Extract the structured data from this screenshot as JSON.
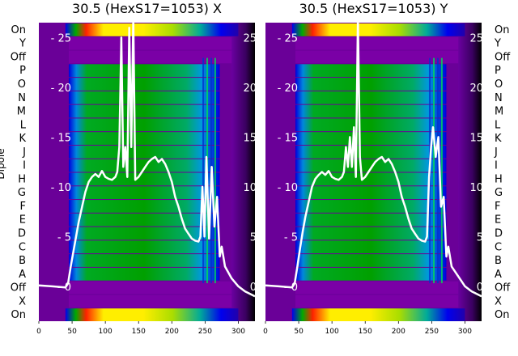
{
  "chart_data": [
    {
      "type": "heatmap",
      "title": "30.5 (HexS17=1053) X",
      "ylabel": "Dipole",
      "rows": [
        "On",
        "Y",
        "Off",
        "P",
        "O",
        "N",
        "M",
        "L",
        "K",
        "J",
        "I",
        "H",
        "G",
        "F",
        "E",
        "D",
        "C",
        "B",
        "A",
        "Off",
        "X",
        "On"
      ],
      "x_ticks": [
        0,
        50,
        100,
        150,
        200,
        250,
        300
      ],
      "xlim": [
        0,
        325
      ],
      "overlay_ticks": [
        0,
        5,
        10,
        15,
        20,
        25
      ],
      "overlay_ylim": [
        -3.5,
        26.5
      ],
      "overlay_line": {
        "x": [
          0,
          20,
          40,
          44,
          48,
          52,
          56,
          60,
          65,
          70,
          75,
          80,
          85,
          90,
          95,
          100,
          105,
          110,
          115,
          118,
          121,
          124,
          127,
          130,
          133,
          136,
          139,
          142,
          145,
          150,
          155,
          160,
          165,
          170,
          175,
          180,
          185,
          190,
          195,
          200,
          205,
          210,
          215,
          220,
          225,
          230,
          235,
          240,
          243,
          246,
          249,
          252,
          256,
          260,
          264,
          268,
          272,
          275,
          280,
          290,
          300,
          310,
          325
        ],
        "y": [
          0.1,
          0,
          -0.1,
          0.3,
          2,
          3.5,
          5,
          6.5,
          8,
          9.5,
          10.5,
          11,
          11.3,
          11,
          11.6,
          11,
          10.8,
          10.7,
          11,
          11.5,
          14,
          25,
          12,
          14,
          11,
          26,
          14,
          27,
          10.7,
          11,
          11.5,
          12,
          12.5,
          12.8,
          13,
          12.5,
          12.8,
          12.3,
          11.5,
          10.5,
          9,
          8,
          6.8,
          5.8,
          5.3,
          4.8,
          4.6,
          4.5,
          5,
          10,
          5,
          13,
          4.8,
          12,
          6,
          9,
          3,
          4,
          2,
          0.8,
          0,
          -0.5,
          -1
        ]
      },
      "colorscale": [
        "#ffffff",
        "#ff2200",
        "#ffee00",
        "#00bb00",
        "#0000ee",
        "#7700aa",
        "#000000"
      ]
    },
    {
      "type": "heatmap",
      "title": "30.5 (HexS17=1053) Y",
      "rows": [
        "On",
        "Y",
        "Off",
        "P",
        "O",
        "N",
        "M",
        "L",
        "K",
        "J",
        "I",
        "H",
        "G",
        "F",
        "E",
        "D",
        "C",
        "B",
        "A",
        "Off",
        "X",
        "On"
      ],
      "x_ticks": [
        0,
        50,
        100,
        150,
        200,
        250,
        300
      ],
      "xlim": [
        0,
        325
      ],
      "overlay_ticks": [
        0,
        5,
        10,
        15,
        20,
        25
      ],
      "overlay_ylim": [
        -3.5,
        26.5
      ],
      "overlay_line": {
        "x": [
          0,
          20,
          40,
          44,
          48,
          52,
          56,
          60,
          65,
          70,
          75,
          80,
          85,
          90,
          95,
          100,
          105,
          110,
          115,
          118,
          121,
          124,
          127,
          130,
          133,
          136,
          139,
          142,
          145,
          150,
          155,
          160,
          165,
          170,
          175,
          180,
          185,
          190,
          195,
          200,
          205,
          210,
          215,
          220,
          225,
          230,
          235,
          240,
          243,
          246,
          249,
          252,
          256,
          260,
          264,
          268,
          272,
          275,
          280,
          290,
          300,
          310,
          325
        ],
        "y": [
          0.1,
          0,
          -0.1,
          0.3,
          2,
          3.8,
          5.5,
          7,
          8.5,
          10,
          10.8,
          11.2,
          11.5,
          11.2,
          11.6,
          11,
          10.8,
          10.7,
          11,
          11.5,
          14,
          12,
          15,
          12,
          16,
          11,
          27,
          13,
          10.7,
          11,
          11.5,
          12,
          12.5,
          12.8,
          13,
          12.5,
          12.8,
          12.3,
          11.5,
          10.5,
          9,
          8,
          6.8,
          5.8,
          5.3,
          4.8,
          4.6,
          4.5,
          5,
          11,
          14,
          16,
          13,
          15,
          8,
          9,
          3,
          4,
          2,
          1,
          0,
          -0.5,
          -1
        ]
      },
      "colorscale": [
        "#ffffff",
        "#ff2200",
        "#ffee00",
        "#00bb00",
        "#0000ee",
        "#7700aa",
        "#000000"
      ]
    }
  ]
}
